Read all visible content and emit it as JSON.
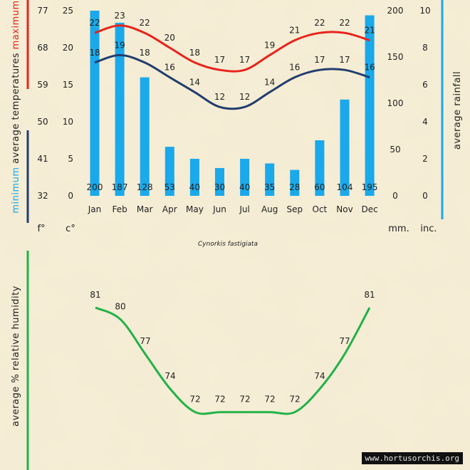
{
  "chart_data": [
    {
      "type": "bar",
      "name": "temperature-rainfall",
      "categories": [
        "Jan",
        "Feb",
        "Mar",
        "Apr",
        "May",
        "Jun",
        "Jul",
        "Aug",
        "Sep",
        "Oct",
        "Nov",
        "Dec"
      ],
      "series": [
        {
          "name": "average rainfall",
          "unit": "mm",
          "color": "#1aa9ea",
          "values": [
            200,
            187,
            128,
            53,
            40,
            30,
            40,
            35,
            28,
            60,
            104,
            195
          ]
        },
        {
          "name": "maximum average temperature",
          "unit": "°C",
          "color": "#e8231c",
          "values": [
            22,
            23,
            22,
            20,
            18,
            17,
            17,
            19,
            21,
            22,
            22,
            21
          ]
        },
        {
          "name": "minimum average temperature",
          "unit": "°C",
          "color": "#223d6e",
          "values": [
            18,
            19,
            18,
            16,
            14,
            12,
            12,
            14,
            16,
            17,
            17,
            16
          ]
        }
      ],
      "axes": {
        "celsius": {
          "unit_label": "c°",
          "ticks": [
            "0",
            "5",
            "10",
            "15",
            "20",
            "25"
          ],
          "ylim": [
            0,
            25
          ]
        },
        "fahrenheit": {
          "unit_label": "f°",
          "ticks": [
            "32",
            "41",
            "50",
            "59",
            "68",
            "77"
          ]
        },
        "rain_mm": {
          "unit_label": "mm.",
          "ticks": [
            "0",
            "50",
            "100",
            "150",
            "200"
          ],
          "ylim": [
            0,
            200
          ]
        },
        "rain_inch": {
          "unit_label": "inc.",
          "ticks": [
            "0",
            "2",
            "4",
            "6",
            "8",
            "10"
          ]
        }
      },
      "labels": {
        "minimum": "minimum",
        "average_temperatures": "average  temperatures",
        "maximum": "maximum",
        "average_rainfall": "average rainfall"
      },
      "title": "Cynorkis fastigiata"
    },
    {
      "type": "line",
      "name": "humidity",
      "categories": [
        "Jan",
        "Feb",
        "Mar",
        "Apr",
        "May",
        "Jun",
        "Jul",
        "Aug",
        "Sep",
        "Oct",
        "Nov",
        "Dec"
      ],
      "series": [
        {
          "name": "average % relative humidity",
          "color": "#22b24a",
          "values": [
            81,
            80,
            77,
            74,
            72,
            72,
            72,
            72,
            72,
            74,
            77,
            81
          ]
        }
      ],
      "ylabel": "average %  relative humidity"
    }
  ],
  "colors": {
    "rain": "#1aa9ea",
    "max": "#e8231c",
    "min": "#223d6e",
    "humidity": "#22b24a",
    "background": "#f5ecd3"
  },
  "watermark": "www.hortusorchis.org"
}
